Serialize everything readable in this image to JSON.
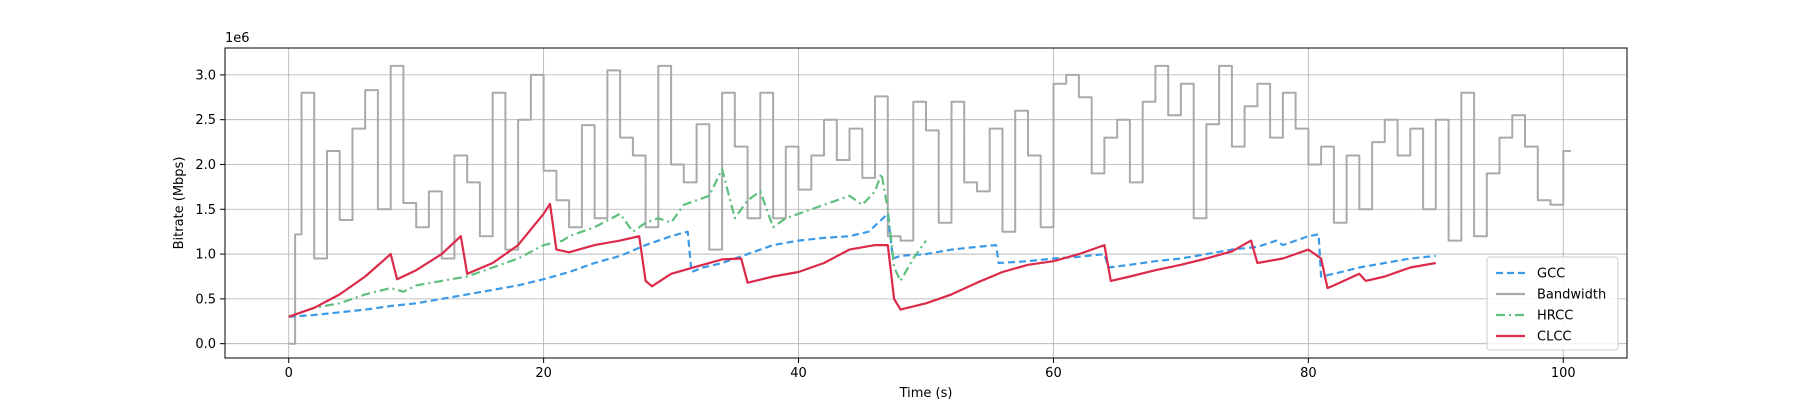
{
  "chart_data": {
    "type": "line",
    "xlabel": "Time (s)",
    "ylabel": "Bitrate (Mbps)",
    "y_offset_text": "1e6",
    "xlim": [
      -5,
      105
    ],
    "ylim": [
      -160000,
      3300000
    ],
    "x_ticks": [
      0,
      20,
      40,
      60,
      80,
      100
    ],
    "y_ticks": [
      0,
      500000,
      1000000,
      1500000,
      2000000,
      2500000,
      3000000
    ],
    "y_tick_labels": [
      "0.0",
      "0.5",
      "1.0",
      "1.5",
      "2.0",
      "2.5",
      "3.0"
    ],
    "grid": true,
    "legend_position": "lower right",
    "series": [
      {
        "name": "GCC",
        "color": "#3b9ae8",
        "dash": "dashed",
        "step": false,
        "x": [
          0,
          2,
          4,
          6,
          8,
          10,
          12,
          14,
          16,
          18,
          20,
          22,
          24,
          26,
          28,
          30,
          31.3,
          31.6,
          32.5,
          34,
          36,
          38,
          40,
          42,
          44,
          45.5,
          47,
          47.4,
          48,
          50,
          52,
          54,
          55.5,
          55.7,
          58,
          60,
          62,
          64,
          64.3,
          66,
          68,
          70,
          72,
          74,
          76,
          77.5,
          78,
          80,
          80.8,
          81,
          82,
          84,
          86,
          88,
          90
        ],
        "y": [
          300000,
          320000,
          350000,
          380000,
          420000,
          450000,
          500000,
          550000,
          600000,
          650000,
          720000,
          800000,
          900000,
          980000,
          1100000,
          1200000,
          1250000,
          800000,
          850000,
          900000,
          1000000,
          1100000,
          1150000,
          1180000,
          1200000,
          1250000,
          1450000,
          950000,
          980000,
          1000000,
          1050000,
          1080000,
          1100000,
          900000,
          920000,
          950000,
          970000,
          1000000,
          850000,
          880000,
          920000,
          950000,
          1000000,
          1050000,
          1080000,
          1150000,
          1100000,
          1200000,
          1220000,
          750000,
          780000,
          850000,
          900000,
          950000,
          980000
        ]
      },
      {
        "name": "Bandwidth",
        "color": "#aaaaaa",
        "dash": "solid",
        "step": true,
        "x": [
          0,
          0.5,
          1,
          2,
          3,
          4,
          5,
          6,
          7,
          8,
          9,
          10,
          11,
          12,
          13,
          14,
          15,
          16,
          17,
          18,
          19,
          20,
          21,
          22,
          23,
          24,
          25,
          26,
          27,
          28,
          29,
          30,
          31,
          32,
          33,
          34,
          35,
          36,
          37,
          38,
          39,
          40,
          41,
          42,
          43,
          44,
          45,
          46,
          47,
          48,
          49,
          50,
          51,
          52,
          53,
          54,
          55,
          56,
          57,
          58,
          59,
          60,
          61,
          62,
          63,
          64,
          65,
          66,
          67,
          68,
          69,
          70,
          71,
          72,
          73,
          74,
          75,
          76,
          77,
          78,
          79,
          80,
          81,
          82,
          83,
          84,
          85,
          86,
          87,
          88,
          89,
          90,
          91,
          92,
          93,
          94,
          95,
          96,
          97,
          98,
          99,
          100
        ],
        "y": [
          0,
          1220000,
          2800000,
          950000,
          2150000,
          1380000,
          2400000,
          2830000,
          1500000,
          3100000,
          1570000,
          1300000,
          1700000,
          950000,
          2100000,
          1800000,
          1200000,
          2800000,
          1050000,
          2500000,
          3000000,
          1930000,
          1600000,
          1300000,
          2440000,
          1400000,
          3050000,
          2300000,
          2100000,
          1300000,
          3100000,
          2000000,
          1800000,
          2450000,
          1050000,
          2800000,
          2200000,
          1400000,
          2800000,
          1400000,
          2200000,
          1720000,
          2100000,
          2500000,
          2050000,
          2400000,
          1850000,
          2760000,
          1200000,
          1150000,
          2700000,
          2380000,
          1350000,
          2700000,
          1800000,
          1700000,
          2400000,
          1250000,
          2600000,
          2100000,
          1300000,
          2900000,
          3000000,
          2750000,
          1900000,
          2300000,
          2500000,
          1800000,
          2700000,
          3100000,
          2550000,
          2900000,
          1400000,
          2450000,
          3100000,
          2200000,
          2650000,
          2900000,
          2300000,
          2800000,
          2400000,
          2000000,
          2200000,
          1350000,
          2100000,
          1500000,
          2250000,
          2500000,
          2100000,
          2400000,
          1500000,
          2500000,
          1150000,
          2800000,
          1200000,
          1900000,
          2300000,
          2550000,
          2200000,
          1600000,
          1550000,
          2150000
        ]
      },
      {
        "name": "HRCC",
        "color": "#5fbf7f",
        "dash": "dashdot",
        "step": false,
        "x": [
          0,
          2,
          4,
          6,
          8,
          9,
          10,
          12,
          14,
          16,
          18,
          20,
          21.5,
          22,
          24,
          26,
          27,
          28,
          29,
          30,
          31,
          32,
          33,
          34,
          35,
          36,
          37,
          38,
          39,
          40,
          42,
          44,
          45,
          46,
          46.5,
          47,
          47.5,
          48,
          49,
          50
        ],
        "y": [
          300000,
          400000,
          450000,
          550000,
          620000,
          580000,
          650000,
          700000,
          750000,
          850000,
          950000,
          1100000,
          1150000,
          1200000,
          1300000,
          1450000,
          1250000,
          1350000,
          1400000,
          1350000,
          1550000,
          1600000,
          1650000,
          1950000,
          1400000,
          1600000,
          1700000,
          1300000,
          1400000,
          1450000,
          1550000,
          1650000,
          1550000,
          1700000,
          1900000,
          1500000,
          850000,
          700000,
          950000,
          1150000
        ]
      },
      {
        "name": "CLCC",
        "color": "#dc2a4a",
        "dash": "solid",
        "step": false,
        "x": [
          0,
          2,
          4,
          6,
          8,
          8.5,
          10,
          12,
          13.5,
          14,
          16,
          18,
          20,
          20.5,
          21,
          22,
          24,
          26,
          27.5,
          28,
          28.5,
          30,
          32,
          34,
          35.5,
          36,
          38,
          40,
          42,
          44,
          46,
          47,
          47.5,
          48,
          50,
          52,
          54,
          56,
          58,
          60,
          62,
          64,
          64.5,
          66,
          68,
          70,
          72,
          74,
          75.5,
          76,
          78,
          80,
          81,
          81.5,
          82,
          84,
          84.5,
          86,
          88,
          90
        ],
        "y": [
          300000,
          400000,
          550000,
          750000,
          1000000,
          720000,
          820000,
          1000000,
          1200000,
          780000,
          900000,
          1100000,
          1450000,
          1560000,
          1050000,
          1020000,
          1100000,
          1150000,
          1200000,
          700000,
          640000,
          780000,
          860000,
          940000,
          950000,
          680000,
          750000,
          800000,
          900000,
          1050000,
          1100000,
          1100000,
          500000,
          380000,
          450000,
          550000,
          680000,
          800000,
          880000,
          920000,
          1000000,
          1100000,
          700000,
          750000,
          820000,
          880000,
          950000,
          1030000,
          1150000,
          900000,
          950000,
          1050000,
          950000,
          620000,
          650000,
          780000,
          700000,
          750000,
          850000,
          900000
        ]
      }
    ]
  }
}
